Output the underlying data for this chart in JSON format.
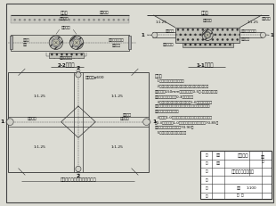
{
  "title": "管道交叉保护设计图",
  "project": "引水工程",
  "bg_color": "#dcdcd4",
  "border_color": "#444444",
  "line_color": "#333333",
  "text_color": "#111111",
  "label_2_2": "2-2剖面图",
  "label_1_1": "1-1剖面图",
  "label_plan": "引水管道穿越公有管道平面图",
  "scale": "1:100",
  "note_lines": [
    "说明：",
    "  1、图未尺寸单位为毫米；",
    "  2、管道与同侧敷设管道应互错，水平距离的净距管道直径大于150mm之间净距离",
    "取0.5米,其他管道间距从各专业管道适用规则取0.3管道中心；",
    "  3、对管道施工完成后：内管套以1.0米，钢管内侧焊止水板；施工分段施工，",
    "与管连接地处，外侧土方回填，管道内侧分段回填施工；",
    "  4、管道1.0以上米内的混凝土分目前，混凝土分层施，混凝土厚度不小于0.3米；",
    "管道以1.0米以内的混凝土的外边距置70.85；浇筑混凝土的抗析水泥实置70.90；",
    "  5、混凝土不允许露出地面。"
  ]
}
